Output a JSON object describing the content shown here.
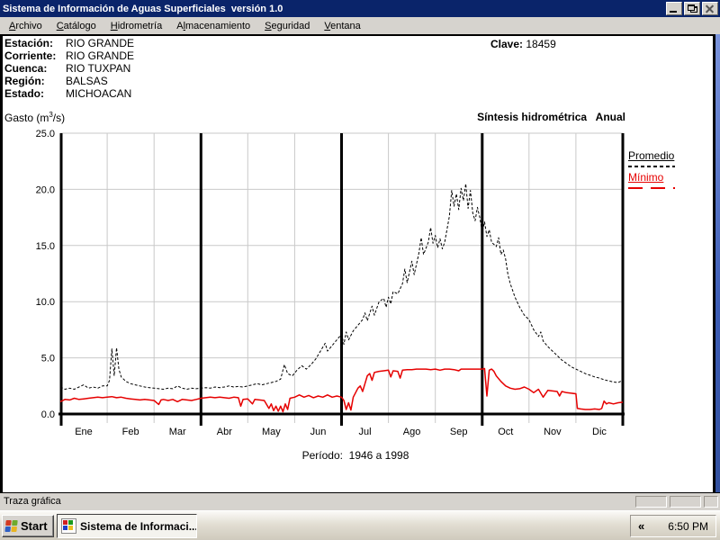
{
  "window": {
    "title": "Sistema de Información de Aguas Superficiales  versión 1.0"
  },
  "menu": {
    "items": [
      {
        "label": "Archivo",
        "accel": 0
      },
      {
        "label": "Catálogo",
        "accel": 0
      },
      {
        "label": "Hidrometría",
        "accel": 0
      },
      {
        "label": "Almacenamiento",
        "accel": 1
      },
      {
        "label": "Seguridad",
        "accel": 0
      },
      {
        "label": "Ventana",
        "accel": 0
      }
    ]
  },
  "station": {
    "rows": [
      {
        "label": "Estación:",
        "value": "RIO GRANDE"
      },
      {
        "label": "Corriente:",
        "value": "RIO GRANDE"
      },
      {
        "label": "Cuenca:",
        "value": "RIO TUXPAN"
      },
      {
        "label": "Región:",
        "value": "BALSAS"
      },
      {
        "label": "Estado:",
        "value": "MICHOACAN"
      }
    ],
    "clave_label": "Clave:",
    "clave_value": "18459"
  },
  "chart_header": {
    "gasto_prefix": "Gasto (m",
    "gasto_sup": "3",
    "gasto_suffix": "/s)",
    "title": "Síntesis hidrométrica   Anual"
  },
  "chart_data": {
    "type": "line",
    "title": "Síntesis hidrométrica Anual",
    "ylabel": "Gasto (m3/s)",
    "xlabel": "",
    "ylim": [
      0,
      25
    ],
    "yticks": [
      0,
      5,
      10,
      15,
      20,
      25
    ],
    "grid": true,
    "legend_position": "right",
    "categories": [
      "Ene",
      "Feb",
      "Mar",
      "Abr",
      "May",
      "Jun",
      "Jul",
      "Ago",
      "Sep",
      "Oct",
      "Nov",
      "Dic"
    ],
    "x_unit": "month index 0-12 (daily synthesis across the year)",
    "period_label": "Período:  1946 a 1998",
    "series": [
      {
        "name": "Promedio",
        "color": "#000000",
        "width": 1,
        "dash": "3 2",
        "points": [
          [
            0,
            2.4
          ],
          [
            0.1,
            2.2
          ],
          [
            0.2,
            2.3
          ],
          [
            0.3,
            2.2
          ],
          [
            0.4,
            2.4
          ],
          [
            0.5,
            2.6
          ],
          [
            0.6,
            2.3
          ],
          [
            0.7,
            2.4
          ],
          [
            0.8,
            2.3
          ],
          [
            0.9,
            2.5
          ],
          [
            1.0,
            2.5
          ],
          [
            1.05,
            3.0
          ],
          [
            1.1,
            5.8
          ],
          [
            1.15,
            3.4
          ],
          [
            1.2,
            5.9
          ],
          [
            1.25,
            4.0
          ],
          [
            1.3,
            3.3
          ],
          [
            1.4,
            2.9
          ],
          [
            1.5,
            2.7
          ],
          [
            1.6,
            2.6
          ],
          [
            1.7,
            2.5
          ],
          [
            1.8,
            2.4
          ],
          [
            1.9,
            2.35
          ],
          [
            2.0,
            2.3
          ],
          [
            2.1,
            2.25
          ],
          [
            2.2,
            2.2
          ],
          [
            2.3,
            2.3
          ],
          [
            2.4,
            2.25
          ],
          [
            2.5,
            2.5
          ],
          [
            2.6,
            2.3
          ],
          [
            2.7,
            2.2
          ],
          [
            2.8,
            2.3
          ],
          [
            2.9,
            2.25
          ],
          [
            3.0,
            2.3
          ],
          [
            3.1,
            2.35
          ],
          [
            3.2,
            2.3
          ],
          [
            3.3,
            2.4
          ],
          [
            3.4,
            2.35
          ],
          [
            3.5,
            2.4
          ],
          [
            3.6,
            2.5
          ],
          [
            3.7,
            2.4
          ],
          [
            3.8,
            2.45
          ],
          [
            3.9,
            2.4
          ],
          [
            4.0,
            2.5
          ],
          [
            4.1,
            2.6
          ],
          [
            4.2,
            2.7
          ],
          [
            4.3,
            2.6
          ],
          [
            4.4,
            2.7
          ],
          [
            4.5,
            2.8
          ],
          [
            4.6,
            2.9
          ],
          [
            4.7,
            3.1
          ],
          [
            4.78,
            4.4
          ],
          [
            4.85,
            3.6
          ],
          [
            4.95,
            3.4
          ],
          [
            5.05,
            3.9
          ],
          [
            5.15,
            4.3
          ],
          [
            5.25,
            4.0
          ],
          [
            5.35,
            4.4
          ],
          [
            5.45,
            4.9
          ],
          [
            5.55,
            5.6
          ],
          [
            5.65,
            6.3
          ],
          [
            5.7,
            5.6
          ],
          [
            5.8,
            6.1
          ],
          [
            5.9,
            6.6
          ],
          [
            6.0,
            7.1
          ],
          [
            6.05,
            6.2
          ],
          [
            6.1,
            7.3
          ],
          [
            6.15,
            6.6
          ],
          [
            6.25,
            7.4
          ],
          [
            6.35,
            7.9
          ],
          [
            6.45,
            8.4
          ],
          [
            6.5,
            9.0
          ],
          [
            6.55,
            8.3
          ],
          [
            6.65,
            9.6
          ],
          [
            6.7,
            8.8
          ],
          [
            6.8,
            10.0
          ],
          [
            6.9,
            10.3
          ],
          [
            6.95,
            9.5
          ],
          [
            7.0,
            10.4
          ],
          [
            7.05,
            9.8
          ],
          [
            7.1,
            10.9
          ],
          [
            7.2,
            10.7
          ],
          [
            7.3,
            11.6
          ],
          [
            7.35,
            12.9
          ],
          [
            7.4,
            11.7
          ],
          [
            7.5,
            13.6
          ],
          [
            7.55,
            12.4
          ],
          [
            7.65,
            14.3
          ],
          [
            7.7,
            15.7
          ],
          [
            7.75,
            14.2
          ],
          [
            7.85,
            15.3
          ],
          [
            7.9,
            16.6
          ],
          [
            7.95,
            15.2
          ],
          [
            8.0,
            15.9
          ],
          [
            8.05,
            14.8
          ],
          [
            8.1,
            15.6
          ],
          [
            8.15,
            14.7
          ],
          [
            8.2,
            15.3
          ],
          [
            8.3,
            17.6
          ],
          [
            8.35,
            19.9
          ],
          [
            8.4,
            18.5
          ],
          [
            8.45,
            19.6
          ],
          [
            8.5,
            18.2
          ],
          [
            8.55,
            20.1
          ],
          [
            8.6,
            19.0
          ],
          [
            8.65,
            20.5
          ],
          [
            8.7,
            18.3
          ],
          [
            8.75,
            19.9
          ],
          [
            8.8,
            17.9
          ],
          [
            8.85,
            17.2
          ],
          [
            8.9,
            18.4
          ],
          [
            8.95,
            17.5
          ],
          [
            9.0,
            16.2
          ],
          [
            9.05,
            17.1
          ],
          [
            9.1,
            15.8
          ],
          [
            9.15,
            16.4
          ],
          [
            9.2,
            15.3
          ],
          [
            9.3,
            14.9
          ],
          [
            9.35,
            15.7
          ],
          [
            9.4,
            14.2
          ],
          [
            9.45,
            14.6
          ],
          [
            9.5,
            13.8
          ],
          [
            9.55,
            12.4
          ],
          [
            9.6,
            11.6
          ],
          [
            9.65,
            11.0
          ],
          [
            9.7,
            10.4
          ],
          [
            9.8,
            9.5
          ],
          [
            9.9,
            8.8
          ],
          [
            10.0,
            8.4
          ],
          [
            10.1,
            7.5
          ],
          [
            10.2,
            6.9
          ],
          [
            10.25,
            7.3
          ],
          [
            10.3,
            6.5
          ],
          [
            10.4,
            6.0
          ],
          [
            10.5,
            5.6
          ],
          [
            10.6,
            5.2
          ],
          [
            10.7,
            4.8
          ],
          [
            10.8,
            4.5
          ],
          [
            10.9,
            4.2
          ],
          [
            11.0,
            4.0
          ],
          [
            11.1,
            3.8
          ],
          [
            11.2,
            3.6
          ],
          [
            11.3,
            3.45
          ],
          [
            11.4,
            3.3
          ],
          [
            11.5,
            3.2
          ],
          [
            11.6,
            3.05
          ],
          [
            11.7,
            2.95
          ],
          [
            11.8,
            2.85
          ],
          [
            11.9,
            2.8
          ],
          [
            11.95,
            2.9
          ],
          [
            12.0,
            3.1
          ]
        ]
      },
      {
        "name": "Mínimo",
        "color": "#e60000",
        "width": 1.5,
        "dash": null,
        "points": [
          [
            0,
            1.1
          ],
          [
            0.1,
            1.3
          ],
          [
            0.2,
            1.25
          ],
          [
            0.3,
            1.4
          ],
          [
            0.4,
            1.3
          ],
          [
            0.5,
            1.35
          ],
          [
            0.6,
            1.4
          ],
          [
            0.7,
            1.45
          ],
          [
            0.8,
            1.5
          ],
          [
            0.9,
            1.45
          ],
          [
            1.0,
            1.5
          ],
          [
            1.1,
            1.55
          ],
          [
            1.2,
            1.45
          ],
          [
            1.3,
            1.5
          ],
          [
            1.4,
            1.4
          ],
          [
            1.5,
            1.35
          ],
          [
            1.6,
            1.3
          ],
          [
            1.7,
            1.25
          ],
          [
            1.8,
            1.3
          ],
          [
            1.9,
            1.25
          ],
          [
            2.0,
            1.2
          ],
          [
            2.1,
            0.85
          ],
          [
            2.15,
            1.25
          ],
          [
            2.2,
            1.3
          ],
          [
            2.3,
            1.2
          ],
          [
            2.4,
            1.3
          ],
          [
            2.5,
            1.1
          ],
          [
            2.6,
            1.3
          ],
          [
            2.7,
            1.25
          ],
          [
            2.8,
            1.2
          ],
          [
            2.9,
            1.3
          ],
          [
            3.0,
            1.4
          ],
          [
            3.1,
            1.45
          ],
          [
            3.2,
            1.5
          ],
          [
            3.3,
            1.45
          ],
          [
            3.4,
            1.5
          ],
          [
            3.5,
            1.45
          ],
          [
            3.6,
            1.4
          ],
          [
            3.7,
            1.5
          ],
          [
            3.8,
            1.45
          ],
          [
            3.85,
            0.7
          ],
          [
            3.9,
            1.3
          ],
          [
            4.0,
            1.35
          ],
          [
            4.1,
            0.9
          ],
          [
            4.15,
            1.3
          ],
          [
            4.25,
            1.25
          ],
          [
            4.35,
            1.2
          ],
          [
            4.45,
            0.5
          ],
          [
            4.5,
            0.9
          ],
          [
            4.55,
            0.3
          ],
          [
            4.6,
            0.7
          ],
          [
            4.65,
            0.25
          ],
          [
            4.7,
            0.7
          ],
          [
            4.75,
            0.2
          ],
          [
            4.8,
            0.9
          ],
          [
            4.85,
            0.4
          ],
          [
            4.9,
            1.4
          ],
          [
            5.0,
            1.5
          ],
          [
            5.1,
            1.7
          ],
          [
            5.2,
            1.5
          ],
          [
            5.3,
            1.65
          ],
          [
            5.4,
            1.45
          ],
          [
            5.5,
            1.6
          ],
          [
            5.6,
            1.5
          ],
          [
            5.7,
            1.7
          ],
          [
            5.8,
            1.5
          ],
          [
            5.9,
            1.6
          ],
          [
            6.0,
            1.5
          ],
          [
            6.05,
            1.2
          ],
          [
            6.1,
            0.4
          ],
          [
            6.15,
            1.0
          ],
          [
            6.2,
            0.35
          ],
          [
            6.25,
            1.5
          ],
          [
            6.3,
            1.9
          ],
          [
            6.35,
            2.3
          ],
          [
            6.4,
            2.5
          ],
          [
            6.45,
            2.0
          ],
          [
            6.5,
            2.7
          ],
          [
            6.55,
            3.4
          ],
          [
            6.6,
            3.6
          ],
          [
            6.65,
            3.0
          ],
          [
            6.7,
            3.7
          ],
          [
            6.8,
            3.8
          ],
          [
            6.9,
            3.85
          ],
          [
            7.0,
            3.9
          ],
          [
            7.05,
            3.3
          ],
          [
            7.1,
            3.85
          ],
          [
            7.2,
            3.8
          ],
          [
            7.25,
            3.2
          ],
          [
            7.3,
            3.9
          ],
          [
            7.4,
            3.95
          ],
          [
            7.5,
            3.95
          ],
          [
            7.6,
            4.0
          ],
          [
            7.7,
            4.0
          ],
          [
            7.8,
            4.0
          ],
          [
            7.9,
            3.95
          ],
          [
            8.0,
            4.0
          ],
          [
            8.1,
            3.9
          ],
          [
            8.2,
            4.0
          ],
          [
            8.3,
            4.0
          ],
          [
            8.4,
            3.95
          ],
          [
            8.5,
            3.85
          ],
          [
            8.55,
            4.0
          ],
          [
            8.6,
            4.0
          ],
          [
            8.7,
            4.0
          ],
          [
            8.8,
            4.0
          ],
          [
            8.9,
            4.0
          ],
          [
            9.0,
            4.0
          ],
          [
            9.05,
            4.05
          ],
          [
            9.1,
            1.6
          ],
          [
            9.15,
            3.9
          ],
          [
            9.2,
            4.0
          ],
          [
            9.25,
            3.8
          ],
          [
            9.3,
            3.4
          ],
          [
            9.4,
            2.9
          ],
          [
            9.5,
            2.5
          ],
          [
            9.6,
            2.3
          ],
          [
            9.7,
            2.2
          ],
          [
            9.8,
            2.25
          ],
          [
            9.9,
            2.4
          ],
          [
            10.0,
            2.2
          ],
          [
            10.1,
            1.9
          ],
          [
            10.2,
            2.2
          ],
          [
            10.3,
            1.5
          ],
          [
            10.4,
            2.1
          ],
          [
            10.5,
            2.05
          ],
          [
            10.6,
            2.0
          ],
          [
            10.65,
            1.6
          ],
          [
            10.7,
            2.0
          ],
          [
            10.8,
            1.9
          ],
          [
            10.9,
            1.85
          ],
          [
            11.0,
            1.8
          ],
          [
            11.03,
            0.5
          ],
          [
            11.1,
            0.45
          ],
          [
            11.2,
            0.4
          ],
          [
            11.3,
            0.4
          ],
          [
            11.4,
            0.45
          ],
          [
            11.5,
            0.4
          ],
          [
            11.55,
            0.5
          ],
          [
            11.6,
            1.15
          ],
          [
            11.65,
            0.9
          ],
          [
            11.7,
            1.0
          ],
          [
            11.8,
            0.9
          ],
          [
            11.9,
            1.0
          ],
          [
            12.0,
            1.05
          ]
        ]
      }
    ]
  },
  "statusbar": {
    "text": "Traza gráfica"
  },
  "taskbar": {
    "start_label": "Start",
    "task_label": "Sistema de Informaci...",
    "chevron": "«",
    "clock": "6:50 PM"
  },
  "colors": {
    "titlebar": "#0a246a",
    "chrome_gray": "#d6d3ce",
    "grid_gray": "#c9c9c9",
    "promedio": "#000000",
    "minimo": "#e60000",
    "edge_blue": "#3c5cb4"
  }
}
